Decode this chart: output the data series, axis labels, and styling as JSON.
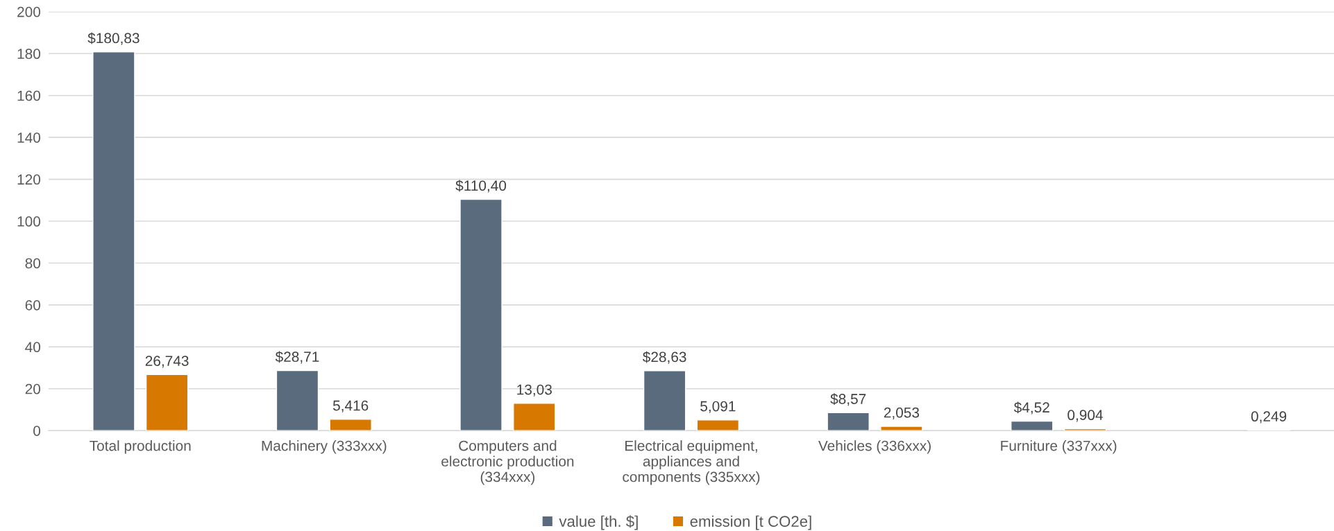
{
  "chart_data": {
    "type": "bar",
    "categories": [
      "Total production",
      "Machinery (333xxx)",
      "Computers and\nelectronic production\n(334xxx)",
      "Electrical equipment,\nappliances and\ncomponents (335xxx)",
      "Vehicles (336xxx)",
      "Furniture (337xxx)",
      null
    ],
    "series": [
      {
        "name": "value [th. $]",
        "color": "#5a6b7d",
        "values": [
          180.83,
          28.71,
          110.4,
          28.63,
          8.57,
          4.52,
          null
        ],
        "value_labels": [
          "$180,83",
          "$28,71",
          "$110,40",
          "$28,63",
          "$8,57",
          "$4,52",
          null
        ]
      },
      {
        "name": "emission [t CO2e]",
        "color": "#d77800",
        "values": [
          26.743,
          5.416,
          13.03,
          5.091,
          2.053,
          0.904,
          0.249
        ],
        "value_labels": [
          "26,743",
          "5,416",
          "13,03",
          "5,091",
          "2,053",
          "0,904",
          "0,249"
        ]
      }
    ],
    "ylim": [
      0,
      200
    ],
    "yticks": [
      0,
      20,
      40,
      60,
      80,
      100,
      120,
      140,
      160,
      180,
      200
    ],
    "grid": "y",
    "legend": "bottom"
  }
}
